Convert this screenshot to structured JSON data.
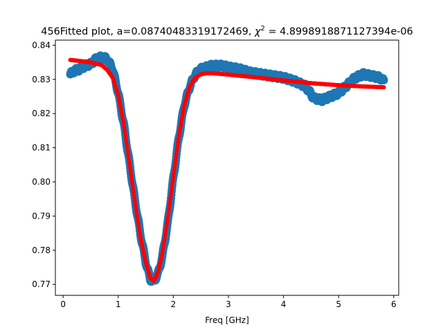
{
  "chart_data": {
    "type": "scatter",
    "title": {
      "prefix": "456Fitted plot, a=0.08740483319172469, ",
      "chi_symbol": "χ",
      "chi_exponent": "2",
      "suffix": " = 4.8998918871127394e-06"
    },
    "xlabel": "Freq [GHz]",
    "ylabel": "",
    "xlim": [
      -0.14,
      6.09
    ],
    "ylim": [
      0.7668,
      0.8415
    ],
    "xticks": [
      0,
      1,
      2,
      3,
      4,
      5,
      6
    ],
    "xtick_labels": [
      "0",
      "1",
      "2",
      "3",
      "4",
      "5",
      "6"
    ],
    "yticks": [
      0.77,
      0.78,
      0.79,
      0.8,
      0.81,
      0.82,
      0.83,
      0.84
    ],
    "ytick_labels": [
      "0.77",
      "0.78",
      "0.79",
      "0.80",
      "0.81",
      "0.82",
      "0.83",
      "0.84"
    ],
    "grid": false,
    "series": [
      {
        "color": "#1f77b4",
        "role": "measured-data",
        "marker_size": "large",
        "x": [
          0.13,
          0.2,
          0.3,
          0.4,
          0.5,
          0.6,
          0.7,
          0.8,
          0.9,
          1.0,
          1.1,
          1.2,
          1.3,
          1.4,
          1.5,
          1.58,
          1.65,
          1.72,
          1.8,
          1.9,
          2.0,
          2.1,
          2.2,
          2.3,
          2.4,
          2.5,
          2.6,
          2.7,
          2.8,
          2.9,
          3.0,
          3.2,
          3.4,
          3.6,
          3.8,
          4.0,
          4.2,
          4.4,
          4.55,
          4.7,
          4.85,
          5.0,
          5.1,
          5.2,
          5.3,
          5.45,
          5.6,
          5.75,
          5.82
        ],
        "y": [
          0.8315,
          0.8325,
          0.833,
          0.834,
          0.8345,
          0.836,
          0.8365,
          0.836,
          0.833,
          0.826,
          0.817,
          0.806,
          0.795,
          0.785,
          0.7765,
          0.7715,
          0.771,
          0.773,
          0.778,
          0.788,
          0.801,
          0.813,
          0.8225,
          0.828,
          0.8315,
          0.833,
          0.8335,
          0.834,
          0.834,
          0.834,
          0.8335,
          0.833,
          0.832,
          0.8315,
          0.831,
          0.8305,
          0.8295,
          0.828,
          0.8245,
          0.824,
          0.825,
          0.826,
          0.8275,
          0.829,
          0.8305,
          0.8315,
          0.831,
          0.8305,
          0.8295
        ]
      },
      {
        "color": "#ff0000",
        "role": "fit-curve",
        "marker_size": "small",
        "x": [
          0.13,
          0.3,
          0.5,
          0.7,
          0.8,
          0.9,
          1.0,
          1.1,
          1.2,
          1.3,
          1.4,
          1.5,
          1.58,
          1.65,
          1.72,
          1.8,
          1.9,
          2.0,
          2.1,
          2.2,
          2.3,
          2.4,
          2.5,
          2.6,
          2.7,
          2.8,
          3.0,
          3.5,
          4.0,
          4.5,
          5.0,
          5.5,
          5.82
        ],
        "y": [
          0.8357,
          0.8354,
          0.835,
          0.8342,
          0.8328,
          0.8305,
          0.8255,
          0.817,
          0.806,
          0.7945,
          0.784,
          0.7765,
          0.772,
          0.771,
          0.7735,
          0.779,
          0.7895,
          0.8015,
          0.8135,
          0.8225,
          0.828,
          0.8305,
          0.8315,
          0.8318,
          0.8318,
          0.8317,
          0.8314,
          0.8306,
          0.8297,
          0.8289,
          0.8283,
          0.8279,
          0.8277
        ]
      }
    ]
  }
}
